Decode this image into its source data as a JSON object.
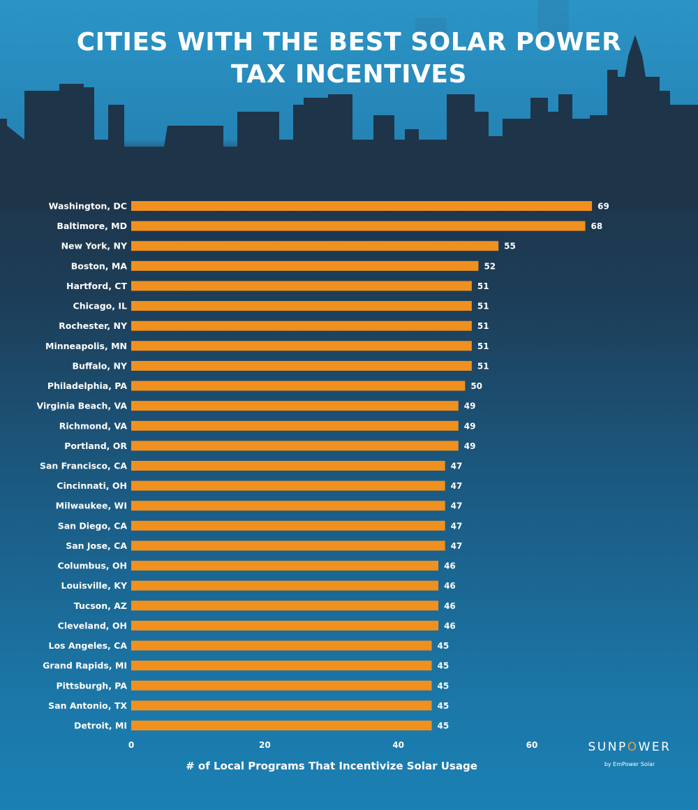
{
  "title_lines": [
    "CITIES WITH THE BEST SOLAR POWER",
    "TAX INCENTIVES"
  ],
  "logo": {
    "brand": "SUNPOWER",
    "subtitle": "by EmPower Solar"
  },
  "colors": {
    "bar": "#f0901f",
    "text": "#ffffff"
  },
  "chart_data": {
    "type": "bar",
    "orientation": "horizontal",
    "title": "CITIES WITH THE BEST SOLAR POWER TAX INCENTIVES",
    "xlabel": "# of Local Programs That Incentivize Solar Usage",
    "ylabel": "",
    "xlim": [
      0,
      69
    ],
    "xticks": [
      0,
      20,
      40,
      60
    ],
    "grid": false,
    "categories": [
      "Washington, DC",
      "Baltimore, MD",
      "New York, NY",
      "Boston, MA",
      "Hartford, CT",
      "Chicago, IL",
      "Rochester, NY",
      "Minneapolis, MN",
      "Buffalo, NY",
      "Philadelphia, PA",
      "Virginia Beach, VA",
      "Richmond, VA",
      "Portland, OR",
      "San Francisco, CA",
      "Cincinnati, OH",
      "Milwaukee, WI",
      "San Diego, CA",
      "San Jose, CA",
      "Columbus, OH",
      "Louisville, KY",
      "Tucson, AZ",
      "Cleveland, OH",
      "Los Angeles, CA",
      "Grand Rapids, MI",
      "Pittsburgh, PA",
      "San Antonio, TX",
      "Detroit, MI"
    ],
    "values": [
      69,
      68,
      55,
      52,
      51,
      51,
      51,
      51,
      51,
      50,
      49,
      49,
      49,
      47,
      47,
      47,
      47,
      47,
      46,
      46,
      46,
      46,
      45,
      45,
      45,
      45,
      45
    ]
  }
}
